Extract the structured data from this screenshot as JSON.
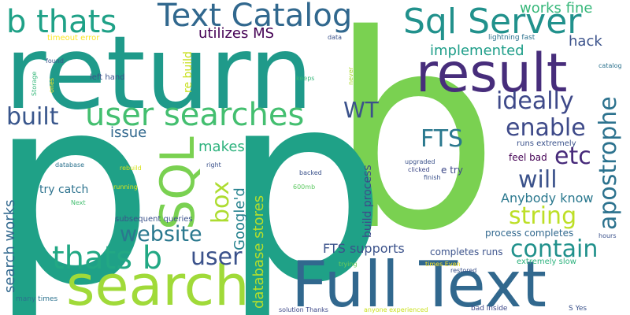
{
  "words": [
    {
      "id": "p",
      "text": "p",
      "color": "#1fa187"
    },
    {
      "id": "b",
      "text": "b",
      "color": "#7ad151"
    },
    {
      "id": "return",
      "text": "return",
      "color": "#1f9a8a"
    },
    {
      "id": "full_text",
      "text": "Full Text",
      "color": "#31688e"
    },
    {
      "id": "search",
      "text": "search",
      "color": "#a0da39"
    },
    {
      "id": "result",
      "text": "result",
      "color": "#472d7b"
    },
    {
      "id": "user_searches",
      "text": "user searches",
      "color": "#44bf70"
    },
    {
      "id": "sql",
      "text": "SQL",
      "color": "#7ad151"
    },
    {
      "id": "text_catalog",
      "text": "Text Catalog",
      "color": "#31688e"
    },
    {
      "id": "sql_server",
      "text": "Sql Server",
      "color": "#21918c"
    },
    {
      "id": "b_thats",
      "text": "b thats",
      "color": "#1fa187"
    },
    {
      "id": "thats_b",
      "text": "thats b",
      "color": "#22a884"
    },
    {
      "id": "website",
      "text": "website",
      "color": "#2a788e"
    },
    {
      "id": "apostrophe",
      "text": "apostrophe",
      "color": "#2c728e"
    },
    {
      "id": "contain",
      "text": "contain",
      "color": "#21918c"
    },
    {
      "id": "string",
      "text": "string",
      "color": "#bddf26"
    },
    {
      "id": "will",
      "text": "will",
      "color": "#3b528b"
    },
    {
      "id": "built",
      "text": "built",
      "color": "#39568c"
    },
    {
      "id": "ideally",
      "text": "ideally",
      "color": "#3e4989"
    },
    {
      "id": "enable",
      "text": "enable",
      "color": "#3e4a89"
    },
    {
      "id": "fts",
      "text": "FTS",
      "color": "#2a788e"
    },
    {
      "id": "etc",
      "text": "etc",
      "color": "#472a7a"
    },
    {
      "id": "user",
      "text": "user",
      "color": "#3b528b"
    },
    {
      "id": "box",
      "text": "box",
      "color": "#addc30"
    },
    {
      "id": "wt",
      "text": "WT",
      "color": "#3b528b"
    },
    {
      "id": "utilizes_ms",
      "text": "utilizes MS",
      "color": "#440154"
    },
    {
      "id": "implemented",
      "text": "implemented",
      "color": "#1f9e89"
    },
    {
      "id": "works_fine",
      "text": "works fine",
      "color": "#35b779"
    },
    {
      "id": "hack",
      "text": "hack",
      "color": "#3b528b"
    },
    {
      "id": "googled",
      "text": "Google'd",
      "color": "#26828e"
    },
    {
      "id": "database_stores",
      "text": "database stores",
      "color": "#b5de2b"
    },
    {
      "id": "makes",
      "text": "makes",
      "color": "#2db27d"
    },
    {
      "id": "issue",
      "text": "issue",
      "color": "#31688e"
    },
    {
      "id": "search_works",
      "text": "search works",
      "color": "#31688e"
    },
    {
      "id": "anybody_know",
      "text": "Anybody know",
      "color": "#2a788e"
    },
    {
      "id": "fts_supports",
      "text": "FTS supports",
      "color": "#3b528b"
    },
    {
      "id": "build_process",
      "text": "build process",
      "color": "#3e4a89"
    },
    {
      "id": "re_build",
      "text": "re build",
      "color": "#c8e020"
    },
    {
      "id": "try_catch",
      "text": "try catch",
      "color": "#2c728e"
    },
    {
      "id": "completes_runs",
      "text": "completes runs",
      "color": "#3b528b"
    },
    {
      "id": "process_completes",
      "text": "process completes",
      "color": "#31688e"
    },
    {
      "id": "feel_bad",
      "text": "feel bad",
      "color": "#440154"
    },
    {
      "id": "runs_extremely",
      "text": "runs extremely",
      "color": "#3b528b"
    },
    {
      "id": "extremely_slow",
      "text": "extremely slow",
      "color": "#2db27d"
    },
    {
      "id": "e_try",
      "text": "e try",
      "color": "#3e4989"
    },
    {
      "id": "subsequent_queries",
      "text": "subsequent queries",
      "color": "#3b528b"
    },
    {
      "id": "left_hand",
      "text": "left hand",
      "color": "#3b528b"
    },
    {
      "id": "timeout_error",
      "text": "timeout error",
      "color": "#fde725"
    },
    {
      "id": "data",
      "text": "data",
      "color": "#3b528b"
    },
    {
      "id": "lightning_fast",
      "text": "lightning fast",
      "color": "#2c728e"
    },
    {
      "id": "catalog",
      "text": "catalog",
      "color": "#2c728e"
    },
    {
      "id": "found",
      "text": "found",
      "color": "#3b528b"
    },
    {
      "id": "storage",
      "text": "Storage",
      "color": "#35b779"
    },
    {
      "id": "ones",
      "text": "ones",
      "color": "#fde725"
    },
    {
      "id": "keeps",
      "text": "keeps",
      "color": "#35b779"
    },
    {
      "id": "never",
      "text": "never",
      "color": "#addc30"
    },
    {
      "id": "database",
      "text": "database",
      "color": "#2c728e"
    },
    {
      "id": "rebuild",
      "text": "rebuild",
      "color": "#d8e219"
    },
    {
      "id": "right",
      "text": "right",
      "color": "#3b528b"
    },
    {
      "id": "running",
      "text": "running",
      "color": "#dde318"
    },
    {
      "id": "next",
      "text": "Next",
      "color": "#44bf70"
    },
    {
      "id": "backed",
      "text": "backed",
      "color": "#3b528b"
    },
    {
      "id": "upgraded",
      "text": "upgraded",
      "color": "#3b528b"
    },
    {
      "id": "clicked",
      "text": "clicked",
      "color": "#3e4989"
    },
    {
      "id": "finish",
      "text": "finish",
      "color": "#3b528b"
    },
    {
      "id": "size_600mb",
      "text": "600mb",
      "color": "#5ec962"
    },
    {
      "id": "hours",
      "text": "hours",
      "color": "#3b528b"
    },
    {
      "id": "trying",
      "text": "trying",
      "color": "#6ece58"
    },
    {
      "id": "times_even",
      "text": "times Even",
      "color": "#fde725"
    },
    {
      "id": "restored",
      "text": "restored",
      "color": "#3b528b"
    },
    {
      "id": "many_times",
      "text": "many times",
      "color": "#2c728e"
    },
    {
      "id": "solution_thanks",
      "text": "solution Thanks",
      "color": "#3e4989"
    },
    {
      "id": "anyone_experienced",
      "text": "anyone experienced",
      "color": "#cae11f"
    },
    {
      "id": "bad_inside",
      "text": "bad inside",
      "color": "#3e4989"
    },
    {
      "id": "s_yes",
      "text": "S Yes",
      "color": "#3b528b"
    }
  ]
}
